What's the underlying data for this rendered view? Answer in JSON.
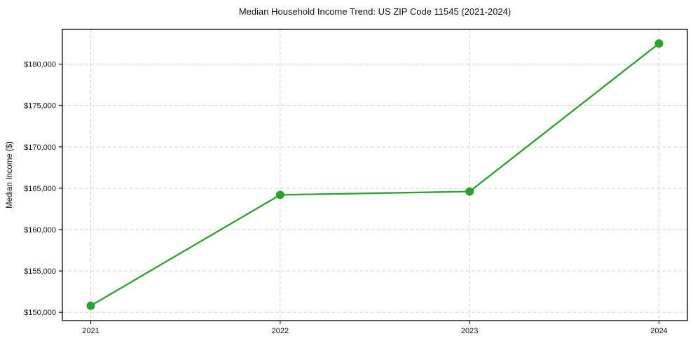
{
  "chart_data": {
    "type": "line",
    "title": "Median Household Income Trend: US ZIP Code 11545 (2021-2024)",
    "xlabel": "",
    "ylabel": "Median Income ($)",
    "x": [
      2021,
      2022,
      2023,
      2024
    ],
    "y": [
      150800,
      164200,
      164600,
      182500
    ],
    "xticks": [
      2021,
      2022,
      2023,
      2024
    ],
    "xtick_labels": [
      "2021",
      "2022",
      "2023",
      "2024"
    ],
    "yticks": [
      150000,
      155000,
      160000,
      165000,
      170000,
      175000,
      180000
    ],
    "ytick_labels": [
      "$150,000",
      "$155,000",
      "$160,000",
      "$165,000",
      "$170,000",
      "$175,000",
      "$180,000"
    ],
    "xlim": [
      2020.85,
      2024.15
    ],
    "ylim": [
      149000,
      184200
    ],
    "grid": true,
    "grid_style": "dashed",
    "legend_position": "none",
    "marker": "circle",
    "line_color": "#2ca02c",
    "grid_color": "#cccccc",
    "spine_color": "#000000",
    "text_color": "#111111",
    "background_color": "#ffffff"
  }
}
